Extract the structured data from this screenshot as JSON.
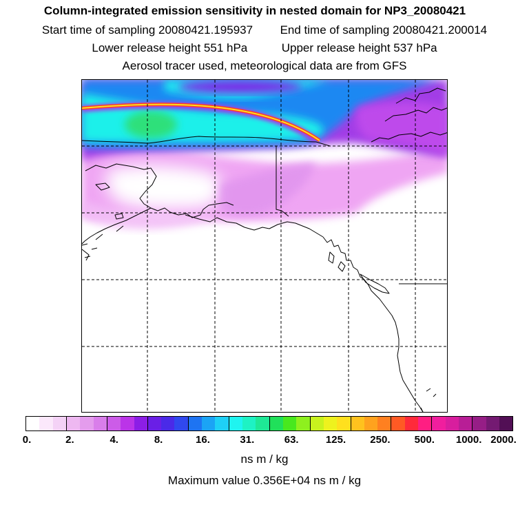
{
  "title": "Column-integrated emission sensitivity in nested domain for NP3_20080421",
  "start_label": "Start time of sampling 20080421.195937",
  "end_label": "End time of sampling 20080421.200014",
  "lower_label": "Lower release height  551 hPa",
  "upper_label": "Upper release height  537 hPa",
  "tracer_label": "Aerosol tracer used, meteorological data are from GFS",
  "colorbar": {
    "colors": [
      "#ffffff",
      "#fbe8fb",
      "#f4d2f6",
      "#eeb8f1",
      "#e49ced",
      "#d97eea",
      "#cc5ce8",
      "#bb34e8",
      "#8c1ee6",
      "#6a1fe6",
      "#4a2ae8",
      "#3048ef",
      "#1e74f2",
      "#1ba4f5",
      "#1ed0f6",
      "#1ff4f0",
      "#1ef2c4",
      "#1ee896",
      "#20e05a",
      "#48e81e",
      "#8ef01e",
      "#c8f21e",
      "#eef21e",
      "#ffe01e",
      "#ffc21e",
      "#ffa21e",
      "#ff8020",
      "#ff5a24",
      "#ff2a3a",
      "#ff1e82",
      "#f01e9e",
      "#d81e9e",
      "#b81e96",
      "#961e86",
      "#741a72",
      "#520f55"
    ],
    "ticks": [
      "0.",
      "2.",
      "4.",
      "8.",
      "16.",
      "31.",
      "63.",
      "125.",
      "250.",
      "500.",
      "1000.",
      "2000."
    ],
    "unit": "ns m / kg"
  },
  "max_label": "Maximum value  0.356E+04 ns m / kg",
  "colors": {
    "frame": "#000000",
    "grid": "#000000",
    "coast": "#000000"
  }
}
